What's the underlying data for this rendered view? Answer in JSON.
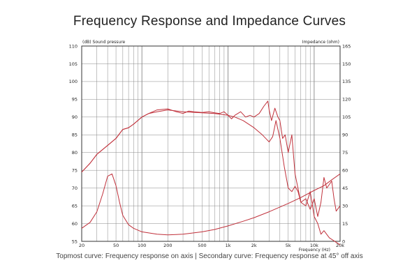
{
  "title": "Frequency Response and Impedance Curves",
  "caption": "Topmost curve: Frequency response on axis | Secondary curve: Frequency response at 45° off axis",
  "colors": {
    "curve": "#c0303a",
    "grid": "#888888",
    "frame": "#333333"
  },
  "chart_data": {
    "type": "line",
    "x_scale": "log",
    "xlim": [
      20,
      20000
    ],
    "ylim_left": [
      55,
      110
    ],
    "ylim_right": [
      0,
      165
    ],
    "grid": true,
    "ylabel_left": "(dB)  Sound pressure",
    "ylabel_right": "Impedance  (ohm)",
    "xlabel": "Frequency   (Hz)",
    "x_tick_labels": [
      {
        "v": 20,
        "t": "20"
      },
      {
        "v": 50,
        "t": "50"
      },
      {
        "v": 100,
        "t": "100"
      },
      {
        "v": 200,
        "t": "200"
      },
      {
        "v": 500,
        "t": "500"
      },
      {
        "v": 1000,
        "t": "1k"
      },
      {
        "v": 2000,
        "t": "2k"
      },
      {
        "v": 5000,
        "t": "5k"
      },
      {
        "v": 10000,
        "t": "10k"
      },
      {
        "v": 20000,
        "t": "20k"
      }
    ],
    "y_left_ticks": [
      110,
      105,
      100,
      95,
      90,
      85,
      80,
      75,
      70,
      65,
      60,
      55
    ],
    "y_right_ticks": [
      165,
      150,
      135,
      120,
      105,
      90,
      75,
      60,
      45,
      30,
      15,
      0
    ],
    "series": [
      {
        "axis": "left",
        "x": [
          20,
          25,
          30,
          40,
          50,
          60,
          70,
          80,
          100,
          120,
          150,
          200,
          250,
          300,
          350,
          400,
          500,
          600,
          700,
          800,
          900,
          1000,
          1100,
          1200,
          1400,
          1600,
          1800,
          2000,
          2300,
          2600,
          2900,
          3000,
          3200,
          3500,
          3800,
          4000,
          4300,
          4600,
          5000,
          5500,
          6000,
          7000,
          8000,
          9000,
          10000,
          11000,
          12000,
          13000,
          14000,
          15000,
          16000,
          17000,
          18000,
          20000
        ],
        "y": [
          74.5,
          77,
          79.5,
          82,
          84,
          86.5,
          87,
          88,
          90,
          91,
          92,
          92.3,
          91.5,
          91,
          91.7,
          91.5,
          91.3,
          91.5,
          91.2,
          91,
          91.5,
          90.5,
          89.5,
          90.5,
          91.5,
          90,
          90.5,
          90,
          91,
          93,
          94.5,
          92,
          89,
          92.5,
          90,
          89,
          84,
          85,
          80,
          85,
          74,
          66,
          67,
          64,
          67,
          62,
          66,
          73,
          70,
          71,
          72,
          67,
          63.5,
          65
        ]
      },
      {
        "axis": "left",
        "x": [
          20,
          25,
          30,
          40,
          50,
          60,
          70,
          80,
          100,
          120,
          150,
          200,
          300,
          500,
          700,
          1000,
          1200,
          1500,
          2000,
          2500,
          3000,
          3300,
          3600,
          4000,
          4500,
          5000,
          5500,
          6000,
          6500,
          7000,
          8000,
          9000,
          10000,
          11000,
          12000,
          13000,
          15000,
          20000
        ],
        "y": [
          74.5,
          77,
          79.5,
          82,
          84,
          86.5,
          87,
          88,
          90,
          91,
          91.5,
          92,
          91.5,
          91.2,
          91,
          90.5,
          90,
          89,
          87,
          85,
          83,
          84.5,
          89,
          84,
          76,
          70,
          69,
          70.5,
          69,
          66,
          65,
          69,
          62,
          60,
          57,
          58,
          56,
          54
        ]
      },
      {
        "axis": "right",
        "x": [
          20,
          25,
          30,
          35,
          40,
          45,
          50,
          55,
          60,
          70,
          80,
          100,
          150,
          200,
          300,
          500,
          700,
          1000,
          1500,
          2000,
          3000,
          5000,
          7000,
          10000,
          13000,
          16000,
          20000
        ],
        "y": [
          11,
          16,
          25,
          40,
          55,
          57,
          47,
          33,
          22,
          14,
          11,
          8,
          6,
          5.5,
          6,
          8,
          10,
          13,
          17,
          20,
          25,
          32,
          37,
          43,
          47,
          52,
          57
        ]
      }
    ]
  }
}
